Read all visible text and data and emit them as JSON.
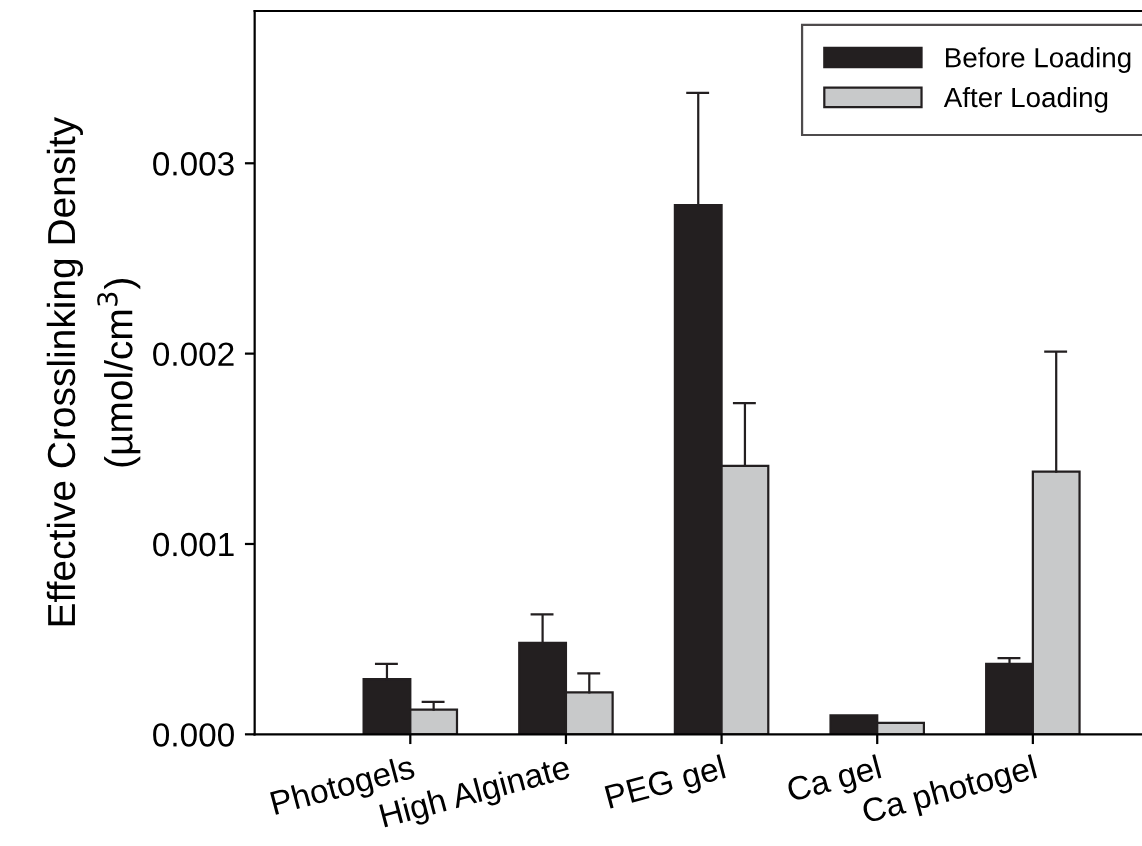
{
  "chart_data": {
    "type": "bar",
    "ylabel": "Effective Crosslinking Density\n(µmol/cm$^{3}$)",
    "categories": [
      "Photogels",
      "High Alginate",
      "PEG gel",
      "Ca gel",
      "Ca photogel"
    ],
    "series": [
      {
        "name": "Before Loading",
        "color": "#231f20",
        "values": [
          0.00029,
          0.00048,
          0.00278,
          0.0001,
          0.00037
        ],
        "errors": [
          [
            0.00029,
            0.00037
          ],
          [
            0.00048,
            0.00063
          ],
          [
            0.00278,
            0.00337
          ],
          null,
          [
            0.00037,
            0.0004
          ]
        ]
      },
      {
        "name": "After Loading",
        "color": "#c8c9ca",
        "values": [
          0.00013,
          0.00022,
          0.00141,
          6e-05,
          0.00138
        ],
        "errors": [
          [
            0.00013,
            0.00017
          ],
          [
            0.00022,
            0.00032
          ],
          [
            0.00141,
            0.00174
          ],
          null,
          [
            0.00138,
            0.00201
          ]
        ]
      }
    ],
    "ylim": [
      0,
      0.0038
    ],
    "yticks": [
      {
        "value": 0,
        "label": "0.000"
      },
      {
        "value": 0.001,
        "label": "0.001"
      },
      {
        "value": 0.002,
        "label": "0.002"
      },
      {
        "value": 0.003,
        "label": "0.003"
      }
    ],
    "legend": "top right",
    "grid": false
  }
}
